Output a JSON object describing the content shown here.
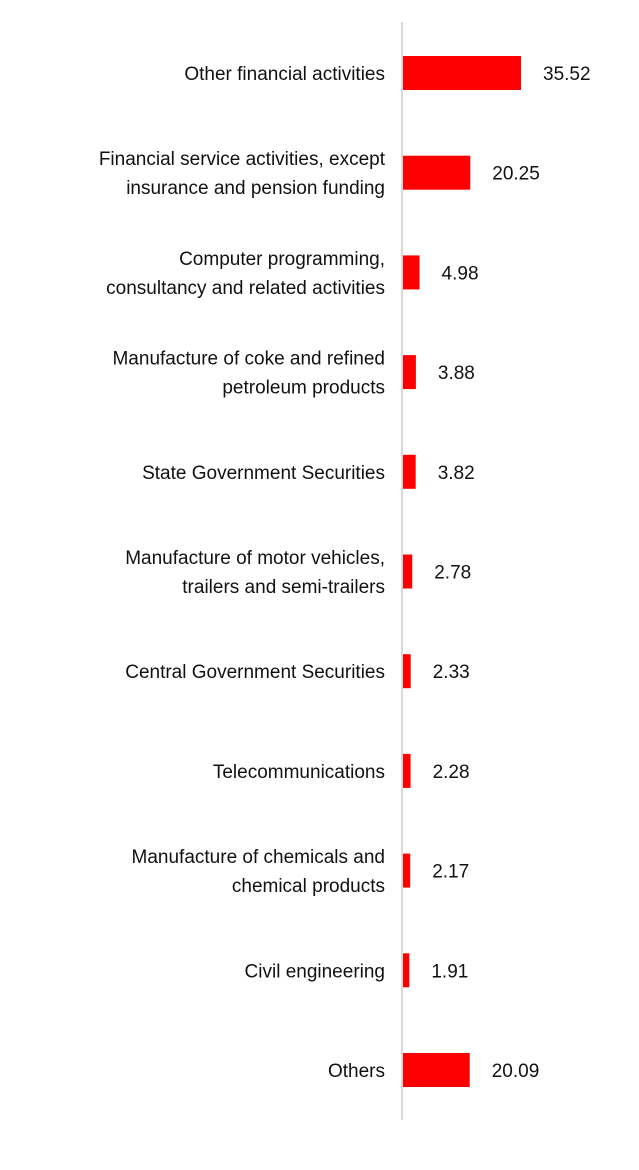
{
  "chart_data": {
    "type": "bar",
    "orientation": "horizontal",
    "title": "",
    "xlabel": "",
    "ylabel": "",
    "grid": false,
    "legend": "none",
    "categories": [
      [
        "Other financial activities"
      ],
      [
        "Financial service activities, except",
        "insurance and pension funding"
      ],
      [
        "Computer programming,",
        "consultancy and related activities"
      ],
      [
        "Manufacture of coke and refined",
        "petroleum products"
      ],
      [
        "State Government Securities"
      ],
      [
        "Manufacture of motor vehicles,",
        "trailers and semi-trailers"
      ],
      [
        "Central Government Securities"
      ],
      [
        "Telecommunications"
      ],
      [
        "Manufacture of chemicals and",
        "chemical products"
      ],
      [
        "Civil engineering"
      ],
      [
        "Others"
      ]
    ],
    "values": [
      35.52,
      20.25,
      4.98,
      3.88,
      3.82,
      2.78,
      2.33,
      2.28,
      2.17,
      1.91,
      20.09
    ],
    "value_labels": [
      "35.52",
      "20.25",
      "4.98",
      "3.88",
      "3.82",
      "2.78",
      "2.33",
      "2.28",
      "2.17",
      "1.91",
      "20.09"
    ],
    "xlim": [
      0,
      36
    ],
    "colors": {
      "bar": "#ff0000",
      "axis": "#d9d9d9",
      "text": "#111111"
    }
  }
}
